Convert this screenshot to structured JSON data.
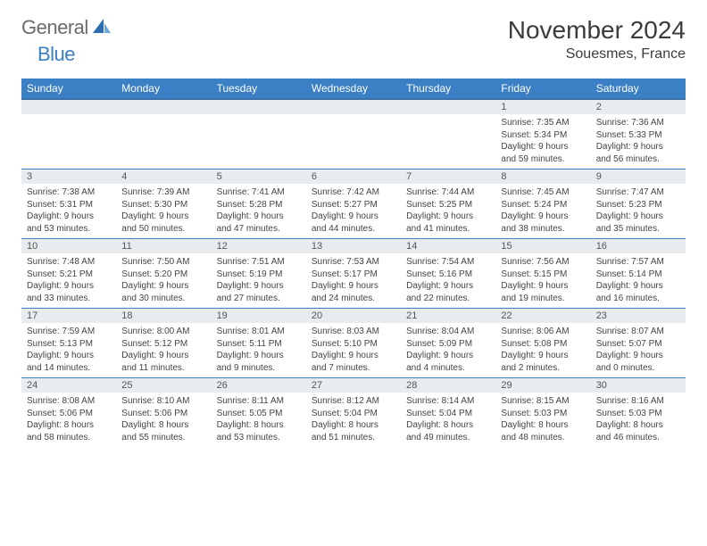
{
  "logo": {
    "text1": "General",
    "text2": "Blue"
  },
  "title": "November 2024",
  "location": "Souesmes, France",
  "colors": {
    "header_bg": "#3b7fc4",
    "header_border": "#3b6fa8",
    "daynum_bg": "#e9ecef",
    "cell_border": "#3b7fc4",
    "logo_gray": "#6b6b6b",
    "logo_blue": "#3b7fc4"
  },
  "weekdays": [
    "Sunday",
    "Monday",
    "Tuesday",
    "Wednesday",
    "Thursday",
    "Friday",
    "Saturday"
  ],
  "weeks": [
    [
      {
        "empty": true
      },
      {
        "empty": true
      },
      {
        "empty": true
      },
      {
        "empty": true
      },
      {
        "empty": true
      },
      {
        "day": "1",
        "sunrise": "Sunrise: 7:35 AM",
        "sunset": "Sunset: 5:34 PM",
        "daylight": "Daylight: 9 hours and 59 minutes."
      },
      {
        "day": "2",
        "sunrise": "Sunrise: 7:36 AM",
        "sunset": "Sunset: 5:33 PM",
        "daylight": "Daylight: 9 hours and 56 minutes."
      }
    ],
    [
      {
        "day": "3",
        "sunrise": "Sunrise: 7:38 AM",
        "sunset": "Sunset: 5:31 PM",
        "daylight": "Daylight: 9 hours and 53 minutes."
      },
      {
        "day": "4",
        "sunrise": "Sunrise: 7:39 AM",
        "sunset": "Sunset: 5:30 PM",
        "daylight": "Daylight: 9 hours and 50 minutes."
      },
      {
        "day": "5",
        "sunrise": "Sunrise: 7:41 AM",
        "sunset": "Sunset: 5:28 PM",
        "daylight": "Daylight: 9 hours and 47 minutes."
      },
      {
        "day": "6",
        "sunrise": "Sunrise: 7:42 AM",
        "sunset": "Sunset: 5:27 PM",
        "daylight": "Daylight: 9 hours and 44 minutes."
      },
      {
        "day": "7",
        "sunrise": "Sunrise: 7:44 AM",
        "sunset": "Sunset: 5:25 PM",
        "daylight": "Daylight: 9 hours and 41 minutes."
      },
      {
        "day": "8",
        "sunrise": "Sunrise: 7:45 AM",
        "sunset": "Sunset: 5:24 PM",
        "daylight": "Daylight: 9 hours and 38 minutes."
      },
      {
        "day": "9",
        "sunrise": "Sunrise: 7:47 AM",
        "sunset": "Sunset: 5:23 PM",
        "daylight": "Daylight: 9 hours and 35 minutes."
      }
    ],
    [
      {
        "day": "10",
        "sunrise": "Sunrise: 7:48 AM",
        "sunset": "Sunset: 5:21 PM",
        "daylight": "Daylight: 9 hours and 33 minutes."
      },
      {
        "day": "11",
        "sunrise": "Sunrise: 7:50 AM",
        "sunset": "Sunset: 5:20 PM",
        "daylight": "Daylight: 9 hours and 30 minutes."
      },
      {
        "day": "12",
        "sunrise": "Sunrise: 7:51 AM",
        "sunset": "Sunset: 5:19 PM",
        "daylight": "Daylight: 9 hours and 27 minutes."
      },
      {
        "day": "13",
        "sunrise": "Sunrise: 7:53 AM",
        "sunset": "Sunset: 5:17 PM",
        "daylight": "Daylight: 9 hours and 24 minutes."
      },
      {
        "day": "14",
        "sunrise": "Sunrise: 7:54 AM",
        "sunset": "Sunset: 5:16 PM",
        "daylight": "Daylight: 9 hours and 22 minutes."
      },
      {
        "day": "15",
        "sunrise": "Sunrise: 7:56 AM",
        "sunset": "Sunset: 5:15 PM",
        "daylight": "Daylight: 9 hours and 19 minutes."
      },
      {
        "day": "16",
        "sunrise": "Sunrise: 7:57 AM",
        "sunset": "Sunset: 5:14 PM",
        "daylight": "Daylight: 9 hours and 16 minutes."
      }
    ],
    [
      {
        "day": "17",
        "sunrise": "Sunrise: 7:59 AM",
        "sunset": "Sunset: 5:13 PM",
        "daylight": "Daylight: 9 hours and 14 minutes."
      },
      {
        "day": "18",
        "sunrise": "Sunrise: 8:00 AM",
        "sunset": "Sunset: 5:12 PM",
        "daylight": "Daylight: 9 hours and 11 minutes."
      },
      {
        "day": "19",
        "sunrise": "Sunrise: 8:01 AM",
        "sunset": "Sunset: 5:11 PM",
        "daylight": "Daylight: 9 hours and 9 minutes."
      },
      {
        "day": "20",
        "sunrise": "Sunrise: 8:03 AM",
        "sunset": "Sunset: 5:10 PM",
        "daylight": "Daylight: 9 hours and 7 minutes."
      },
      {
        "day": "21",
        "sunrise": "Sunrise: 8:04 AM",
        "sunset": "Sunset: 5:09 PM",
        "daylight": "Daylight: 9 hours and 4 minutes."
      },
      {
        "day": "22",
        "sunrise": "Sunrise: 8:06 AM",
        "sunset": "Sunset: 5:08 PM",
        "daylight": "Daylight: 9 hours and 2 minutes."
      },
      {
        "day": "23",
        "sunrise": "Sunrise: 8:07 AM",
        "sunset": "Sunset: 5:07 PM",
        "daylight": "Daylight: 9 hours and 0 minutes."
      }
    ],
    [
      {
        "day": "24",
        "sunrise": "Sunrise: 8:08 AM",
        "sunset": "Sunset: 5:06 PM",
        "daylight": "Daylight: 8 hours and 58 minutes."
      },
      {
        "day": "25",
        "sunrise": "Sunrise: 8:10 AM",
        "sunset": "Sunset: 5:06 PM",
        "daylight": "Daylight: 8 hours and 55 minutes."
      },
      {
        "day": "26",
        "sunrise": "Sunrise: 8:11 AM",
        "sunset": "Sunset: 5:05 PM",
        "daylight": "Daylight: 8 hours and 53 minutes."
      },
      {
        "day": "27",
        "sunrise": "Sunrise: 8:12 AM",
        "sunset": "Sunset: 5:04 PM",
        "daylight": "Daylight: 8 hours and 51 minutes."
      },
      {
        "day": "28",
        "sunrise": "Sunrise: 8:14 AM",
        "sunset": "Sunset: 5:04 PM",
        "daylight": "Daylight: 8 hours and 49 minutes."
      },
      {
        "day": "29",
        "sunrise": "Sunrise: 8:15 AM",
        "sunset": "Sunset: 5:03 PM",
        "daylight": "Daylight: 8 hours and 48 minutes."
      },
      {
        "day": "30",
        "sunrise": "Sunrise: 8:16 AM",
        "sunset": "Sunset: 5:03 PM",
        "daylight": "Daylight: 8 hours and 46 minutes."
      }
    ]
  ]
}
